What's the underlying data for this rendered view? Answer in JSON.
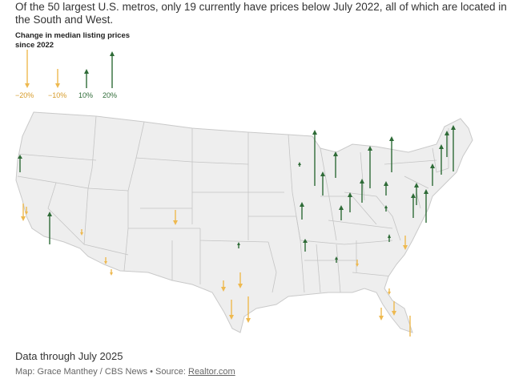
{
  "headline": "Of the 50 largest U.S. metros, only 19 currently have prices below July 2022, all of which are located in the South and West.",
  "legend": {
    "title_line1": "Change in median listing prices",
    "title_line2": "since 2022",
    "items": [
      {
        "label": "−20%",
        "value": -20
      },
      {
        "label": "−10%",
        "value": -10
      },
      {
        "label": "10%",
        "value": 10
      },
      {
        "label": "20%",
        "value": 20
      }
    ]
  },
  "colors": {
    "increase": "#2e6b37",
    "decrease": "#eeb94f",
    "land": "#eeeeee",
    "border": "#bdbdbd"
  },
  "footer": {
    "caption": "Data through July 2025",
    "credit_prefix": "Map: Grace Manthey / CBS News • Source: ",
    "credit_source": "Realtor.com"
  }
}
